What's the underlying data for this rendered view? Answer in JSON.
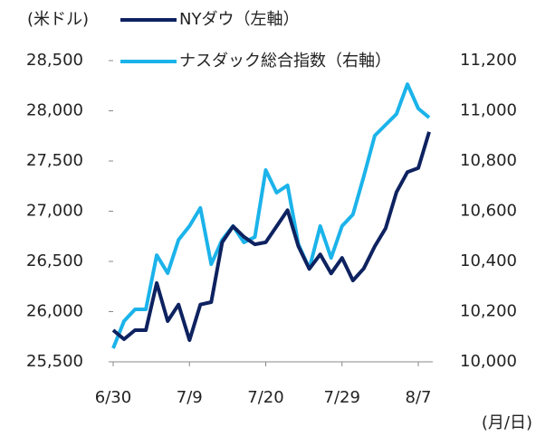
{
  "chart_data": {
    "type": "line",
    "y_unit": "(米ドル)",
    "x_unit": "(月/日)",
    "categories": [
      "6/30",
      null,
      null,
      null,
      null,
      null,
      null,
      "7/9",
      null,
      null,
      null,
      null,
      null,
      null,
      "7/20",
      null,
      null,
      null,
      null,
      null,
      null,
      "7/29",
      null,
      null,
      null,
      null,
      null,
      null,
      "8/7",
      null
    ],
    "series": [
      {
        "name": "NYダウ（左軸）",
        "color": "#0e2260",
        "axis": "y",
        "values": [
          25815,
          25725,
          25815,
          25815,
          26285,
          25905,
          26070,
          25715,
          26070,
          26095,
          26690,
          26850,
          26745,
          26670,
          26690,
          26850,
          27010,
          26650,
          26425,
          26570,
          26380,
          26535,
          26310,
          26430,
          26650,
          26830,
          27190,
          27390,
          27430,
          27790
        ]
      },
      {
        "name": "ナスダック総合指数（右軸）",
        "color": "#1bb3ea",
        "axis": "y2",
        "values": [
          10054,
          10162,
          10209,
          10209,
          10425,
          10353,
          10486,
          10541,
          10613,
          10389,
          10486,
          10541,
          10476,
          10497,
          10764,
          10674,
          10703,
          10468,
          10371,
          10541,
          10414,
          10541,
          10587,
          10739,
          10901,
          10944,
          10987,
          11106,
          11009,
          10973
        ]
      }
    ],
    "ylim": [
      25500,
      28500
    ],
    "yticks": [
      {
        "value": 25500,
        "label": "25,500"
      },
      {
        "value": 26000,
        "label": "26,000"
      },
      {
        "value": 26500,
        "label": "26,500"
      },
      {
        "value": 27000,
        "label": "27,000"
      },
      {
        "value": 27500,
        "label": "27,500"
      },
      {
        "value": 28000,
        "label": "28,000"
      },
      {
        "value": 28500,
        "label": "28,500"
      }
    ],
    "y2lim": [
      10000,
      11200
    ],
    "y2ticks": [
      {
        "value": 10000,
        "label": "10,000"
      },
      {
        "value": 10200,
        "label": "10,200"
      },
      {
        "value": 10400,
        "label": "10,400"
      },
      {
        "value": 10600,
        "label": "10,600"
      },
      {
        "value": 10800,
        "label": "10,800"
      },
      {
        "value": 11000,
        "label": "11,000"
      },
      {
        "value": 11200,
        "label": "11,200"
      }
    ]
  }
}
